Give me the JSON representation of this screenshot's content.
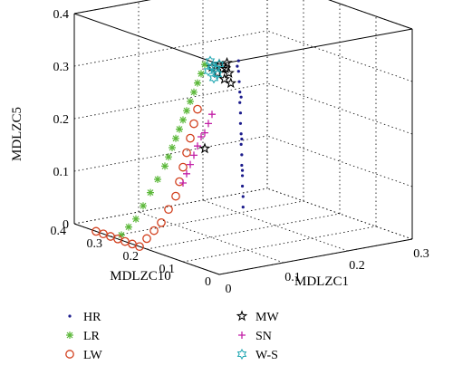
{
  "chart_data": {
    "type": "scatter",
    "xlabel": "MDLZC1",
    "ylabel": "MDLZC10",
    "zlabel": "MDLZC5",
    "xlim": [
      0,
      0.3
    ],
    "ylim": [
      0,
      0.4
    ],
    "zlim": [
      0,
      0.4
    ],
    "x_ticks": [
      "0",
      "0.1",
      "0.2",
      "0.3"
    ],
    "y_ticks": [
      "0",
      "0.1",
      "0.2",
      "0.3",
      "0.4"
    ],
    "z_ticks": [
      "0",
      "0.1",
      "0.2",
      "0.3",
      "0.4"
    ],
    "grid": true,
    "legend": "bottom",
    "series": [
      {
        "name": "HR",
        "marker": "dot",
        "color": "#1c1c8c",
        "points": [
          [
            0.03,
            0.0,
            0.4
          ],
          [
            0.03,
            0.0,
            0.38
          ],
          [
            0.031,
            0.0,
            0.36
          ],
          [
            0.032,
            0.0,
            0.34
          ],
          [
            0.032,
            0.0,
            0.32
          ],
          [
            0.033,
            0.0,
            0.3
          ],
          [
            0.033,
            0.0,
            0.28
          ],
          [
            0.034,
            0.0,
            0.26
          ],
          [
            0.034,
            0.0,
            0.24
          ],
          [
            0.035,
            0.0,
            0.22
          ],
          [
            0.035,
            0.0,
            0.2
          ],
          [
            0.036,
            0.0,
            0.18
          ],
          [
            0.036,
            0.0,
            0.16
          ],
          [
            0.037,
            0.0,
            0.14
          ],
          [
            0.037,
            0.0,
            0.12
          ],
          [
            0.028,
            0.0,
            0.39
          ],
          [
            0.034,
            0.0,
            0.33
          ],
          [
            0.035,
            0.0,
            0.25
          ],
          [
            0.036,
            0.0,
            0.19
          ]
        ]
      },
      {
        "name": "LR",
        "marker": "asterisk",
        "color": "#5cb83a",
        "points": [
          [
            0.0,
            0.04,
            0.39
          ],
          [
            0.0,
            0.05,
            0.37
          ],
          [
            0.0,
            0.06,
            0.35
          ],
          [
            0.0,
            0.07,
            0.33
          ],
          [
            0.0,
            0.08,
            0.31
          ],
          [
            0.0,
            0.09,
            0.29
          ],
          [
            0.0,
            0.1,
            0.27
          ],
          [
            0.0,
            0.11,
            0.25
          ],
          [
            0.0,
            0.12,
            0.23
          ],
          [
            0.0,
            0.13,
            0.21
          ],
          [
            0.0,
            0.14,
            0.19
          ],
          [
            0.0,
            0.15,
            0.17
          ],
          [
            0.0,
            0.17,
            0.14
          ],
          [
            0.0,
            0.19,
            0.11
          ],
          [
            0.0,
            0.21,
            0.08
          ],
          [
            0.0,
            0.23,
            0.05
          ],
          [
            0.0,
            0.25,
            0.03
          ],
          [
            0.0,
            0.27,
            0.01
          ]
        ]
      },
      {
        "name": "LW",
        "marker": "circle",
        "color": "#d2401e",
        "points": [
          [
            0.0,
            0.06,
            0.3
          ],
          [
            0.0,
            0.07,
            0.27
          ],
          [
            0.0,
            0.08,
            0.24
          ],
          [
            0.0,
            0.09,
            0.21
          ],
          [
            0.0,
            0.1,
            0.18
          ],
          [
            0.0,
            0.11,
            0.15
          ],
          [
            0.0,
            0.12,
            0.12
          ],
          [
            0.0,
            0.14,
            0.09
          ],
          [
            0.0,
            0.16,
            0.06
          ],
          [
            0.0,
            0.18,
            0.04
          ],
          [
            0.0,
            0.2,
            0.02
          ],
          [
            0.0,
            0.22,
            0.0
          ],
          [
            0.0,
            0.24,
            0.0
          ],
          [
            0.0,
            0.26,
            0.0
          ],
          [
            0.0,
            0.28,
            0.0
          ],
          [
            0.0,
            0.3,
            0.0
          ],
          [
            0.0,
            0.32,
            0.0
          ],
          [
            0.0,
            0.34,
            0.0
          ]
        ]
      },
      {
        "name": "MW",
        "marker": "star",
        "color": "#000000",
        "points": [
          [
            0.0,
            0.0,
            0.4
          ],
          [
            0.005,
            0.0,
            0.39
          ],
          [
            0.01,
            0.0,
            0.39
          ],
          [
            0.015,
            0.0,
            0.38
          ],
          [
            0.012,
            0.0,
            0.4
          ],
          [
            0.008,
            0.0,
            0.37
          ],
          [
            0.0,
            0.02,
            0.39
          ],
          [
            0.003,
            0.01,
            0.38
          ],
          [
            0.018,
            0.0,
            0.36
          ],
          [
            0.0,
            0.04,
            0.23
          ]
        ]
      },
      {
        "name": "SN",
        "marker": "plus",
        "color": "#c21fa6",
        "points": [
          [
            0.0,
            0.02,
            0.3
          ],
          [
            0.0,
            0.03,
            0.28
          ],
          [
            0.0,
            0.04,
            0.26
          ],
          [
            0.0,
            0.05,
            0.25
          ],
          [
            0.0,
            0.06,
            0.23
          ],
          [
            0.0,
            0.07,
            0.21
          ],
          [
            0.0,
            0.08,
            0.19
          ],
          [
            0.0,
            0.09,
            0.17
          ],
          [
            0.0,
            0.1,
            0.15
          ]
        ]
      },
      {
        "name": "W-S",
        "marker": "hexagram",
        "color": "#26a9b4",
        "points": [
          [
            0.0,
            0.0,
            0.4
          ],
          [
            0.0,
            0.01,
            0.39
          ],
          [
            0.0,
            0.02,
            0.39
          ],
          [
            0.0,
            0.03,
            0.38
          ],
          [
            0.0,
            0.015,
            0.37
          ],
          [
            0.0,
            0.005,
            0.38
          ],
          [
            0.0,
            0.025,
            0.4
          ]
        ]
      }
    ]
  }
}
